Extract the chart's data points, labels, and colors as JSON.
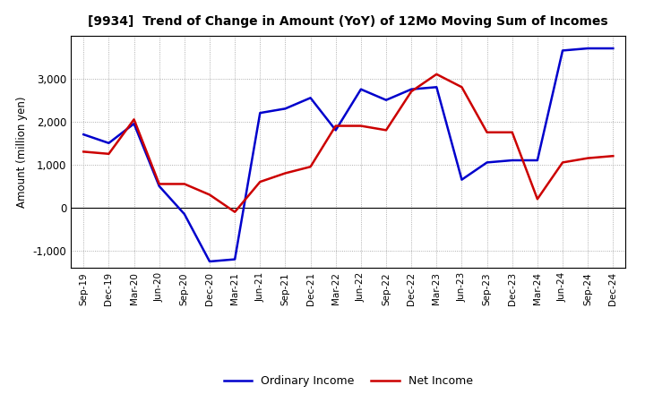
{
  "title": "[9934]  Trend of Change in Amount (YoY) of 12Mo Moving Sum of Incomes",
  "ylabel": "Amount (million yen)",
  "x_labels": [
    "Sep-19",
    "Dec-19",
    "Mar-20",
    "Jun-20",
    "Sep-20",
    "Dec-20",
    "Mar-21",
    "Jun-21",
    "Sep-21",
    "Dec-21",
    "Mar-22",
    "Jun-22",
    "Sep-22",
    "Dec-22",
    "Mar-23",
    "Jun-23",
    "Sep-23",
    "Dec-23",
    "Mar-24",
    "Jun-24",
    "Sep-24",
    "Dec-24"
  ],
  "ordinary_income": [
    1700,
    1500,
    1950,
    500,
    -150,
    -1250,
    -1200,
    2200,
    2300,
    2550,
    1800,
    2750,
    2500,
    2750,
    2800,
    650,
    1050,
    1100,
    1100,
    3650,
    3700,
    3700
  ],
  "net_income": [
    1300,
    1250,
    2050,
    550,
    550,
    300,
    -100,
    600,
    800,
    950,
    1900,
    1900,
    1800,
    2700,
    3100,
    2800,
    1750,
    1750,
    200,
    1050,
    1150,
    1200
  ],
  "ordinary_color": "#0000cc",
  "net_color": "#cc0000",
  "ylim": [
    -1400,
    4000
  ],
  "yticks": [
    -1000,
    0,
    1000,
    2000,
    3000
  ],
  "grid_color": "#999999"
}
